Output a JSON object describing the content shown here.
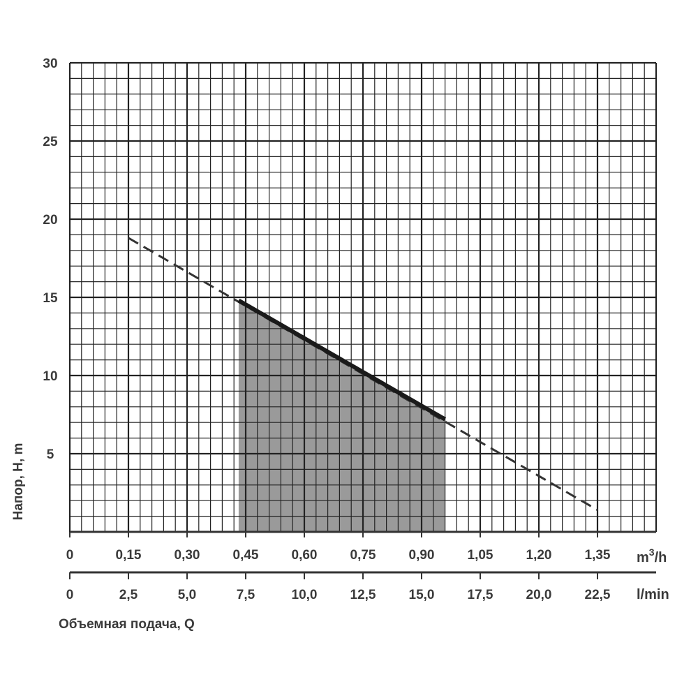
{
  "chart_data": {
    "type": "line",
    "ylabel": "Напор, H, m",
    "xlabel": "Объемная подача, Q",
    "y_ticks": [
      "30",
      "25",
      "20",
      "15",
      "10",
      "5"
    ],
    "y_tick_values": [
      30,
      25,
      20,
      15,
      10,
      5
    ],
    "ylim": [
      0,
      30
    ],
    "x_ticks_m3h": [
      "0",
      "0,15",
      "0,30",
      "0,45",
      "0,60",
      "0,75",
      "0,90",
      "1,05",
      "1,20",
      "1,35"
    ],
    "x_ticks_lmin": [
      "0",
      "2,5",
      "5,0",
      "7,5",
      "10,0",
      "12,5",
      "15,0",
      "17,5",
      "20,0",
      "22,5"
    ],
    "x_tick_values_lmin": [
      0,
      2.5,
      5,
      7.5,
      10,
      12.5,
      15,
      17.5,
      20,
      22.5
    ],
    "xlim_lmin": [
      0,
      25
    ],
    "unit_m3h_base": "m",
    "unit_m3h_sup": "3",
    "unit_m3h_rest": "/h",
    "unit_lmin": "l/min",
    "grid": true,
    "series": [
      {
        "style": "dashed",
        "x": [
          2.5,
          22.5
        ],
        "y": [
          18.8,
          1.4
        ]
      },
      {
        "style": "solid",
        "x": [
          7.2,
          16.0
        ],
        "y": [
          14.8,
          7.2
        ]
      }
    ],
    "shaded_region": {
      "x": [
        7.2,
        16.0
      ]
    }
  }
}
